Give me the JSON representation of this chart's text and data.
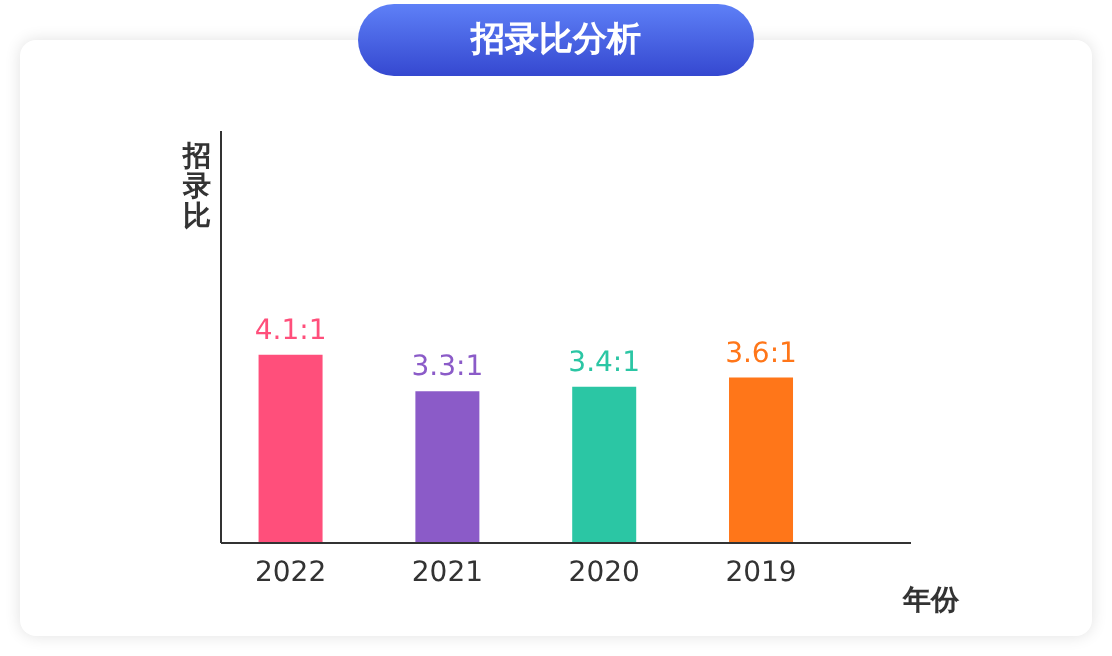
{
  "chart_data": {
    "type": "bar",
    "title": "招录比分析",
    "xlabel": "年份",
    "ylabel": "招录比",
    "categories": [
      "2022",
      "2021",
      "2020",
      "2019"
    ],
    "values": [
      4.1,
      3.3,
      3.4,
      3.6
    ],
    "colors": [
      "#ff4f7b",
      "#8b5bc8",
      "#2bc6a4",
      "#ff7619"
    ],
    "value_labels": [
      "4.1:1",
      "3.3:1",
      "3.4:1",
      "3.6:1"
    ],
    "grid": false
  }
}
